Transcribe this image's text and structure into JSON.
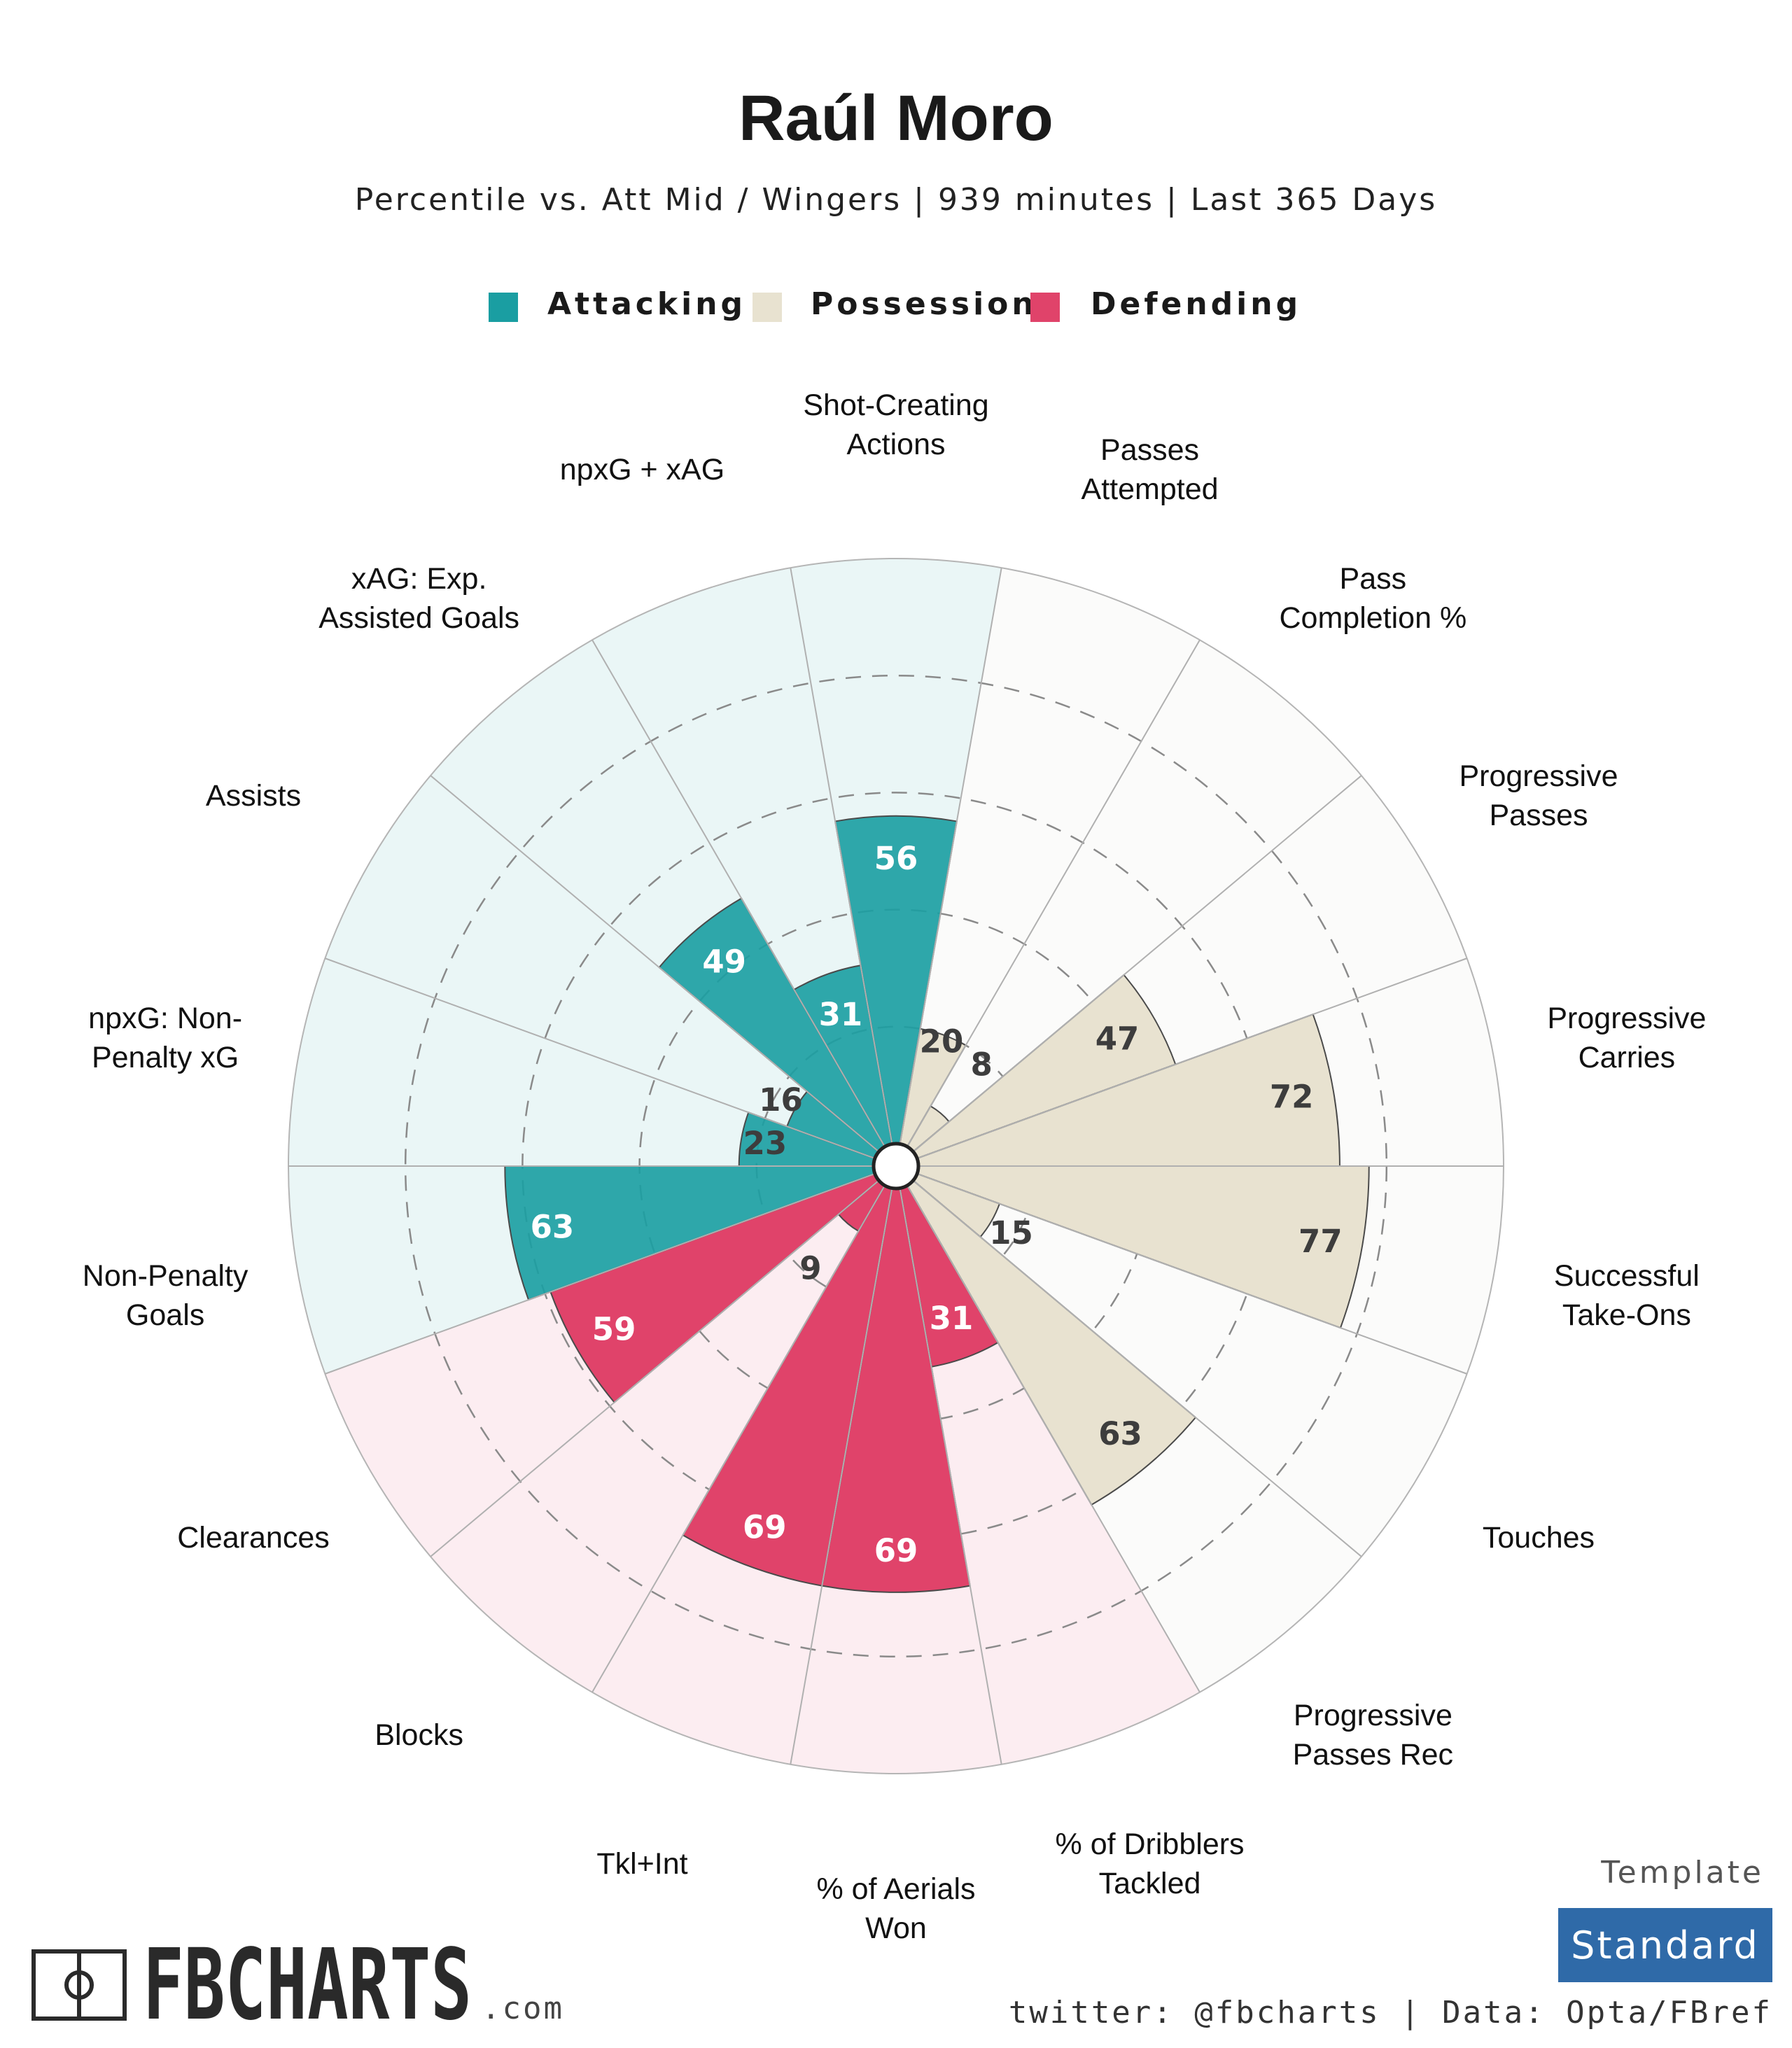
{
  "title": "Raúl Moro",
  "subtitle": "Percentile vs. Att Mid / Wingers | 939 minutes | Last 365 Days",
  "legend": [
    {
      "label": "Attacking",
      "color": "#1a9ea2"
    },
    {
      "label": "Possession",
      "color": "#e8e2d0"
    },
    {
      "label": "Defending",
      "color": "#e0436a"
    }
  ],
  "colors": {
    "attacking": "#1a9ea2",
    "attacking_bg": "#eaf6f6",
    "possession": "#e8e2d0",
    "possession_bg": "#fbfbfa",
    "defending": "#e0436a",
    "defending_bg": "#fcedf1"
  },
  "chart_data": {
    "type": "polar-bar",
    "title": "Raúl Moro",
    "subtitle": "Percentile vs. Att Mid / Wingers | 939 minutes | Last 365 Days",
    "rmax": 100,
    "rticks": [
      20,
      40,
      60,
      80
    ],
    "categories": [
      {
        "label": [
          "Shot-Creating",
          "Actions"
        ],
        "value": 56,
        "group": "attacking"
      },
      {
        "label": [
          "Passes",
          "Attempted"
        ],
        "value": 20,
        "group": "possession"
      },
      {
        "label": [
          "Pass",
          "Completion %"
        ],
        "value": 8,
        "group": "possession"
      },
      {
        "label": [
          "Progressive",
          "Passes"
        ],
        "value": 47,
        "group": "possession"
      },
      {
        "label": [
          "Progressive",
          "Carries"
        ],
        "value": 72,
        "group": "possession"
      },
      {
        "label": [
          "Successful",
          "Take-Ons"
        ],
        "value": 77,
        "group": "possession"
      },
      {
        "label": [
          "Touches"
        ],
        "value": 15,
        "group": "possession"
      },
      {
        "label": [
          "Progressive",
          "Passes Rec"
        ],
        "value": 63,
        "group": "possession"
      },
      {
        "label": [
          "% of Dribblers",
          "Tackled"
        ],
        "value": 31,
        "group": "defending"
      },
      {
        "label": [
          "% of Aerials",
          "Won"
        ],
        "value": 69,
        "group": "defending"
      },
      {
        "label": [
          "Tkl+Int"
        ],
        "value": 69,
        "group": "defending"
      },
      {
        "label": [
          "Blocks"
        ],
        "value": 9,
        "group": "defending"
      },
      {
        "label": [
          "Clearances"
        ],
        "value": 59,
        "group": "defending"
      },
      {
        "label": [
          "Non-Penalty",
          "Goals"
        ],
        "value": 63,
        "group": "attacking"
      },
      {
        "label": [
          "npxG: Non-",
          "Penalty xG"
        ],
        "value": 23,
        "group": "attacking"
      },
      {
        "label": [
          "Assists"
        ],
        "value": 16,
        "group": "attacking"
      },
      {
        "label": [
          "xAG: Exp.",
          "Assisted Goals"
        ],
        "value": 49,
        "group": "attacking"
      },
      {
        "label": [
          "npxG + xAG"
        ],
        "value": 31,
        "group": "attacking"
      }
    ]
  },
  "footer": {
    "logo": "FBCHARTS",
    "logo_suffix": ".com",
    "credits": "twitter: @fbcharts | Data: Opta/FBref",
    "template_label": "Template",
    "template_value": "Standard",
    "template_color": "#2f6aa8"
  }
}
